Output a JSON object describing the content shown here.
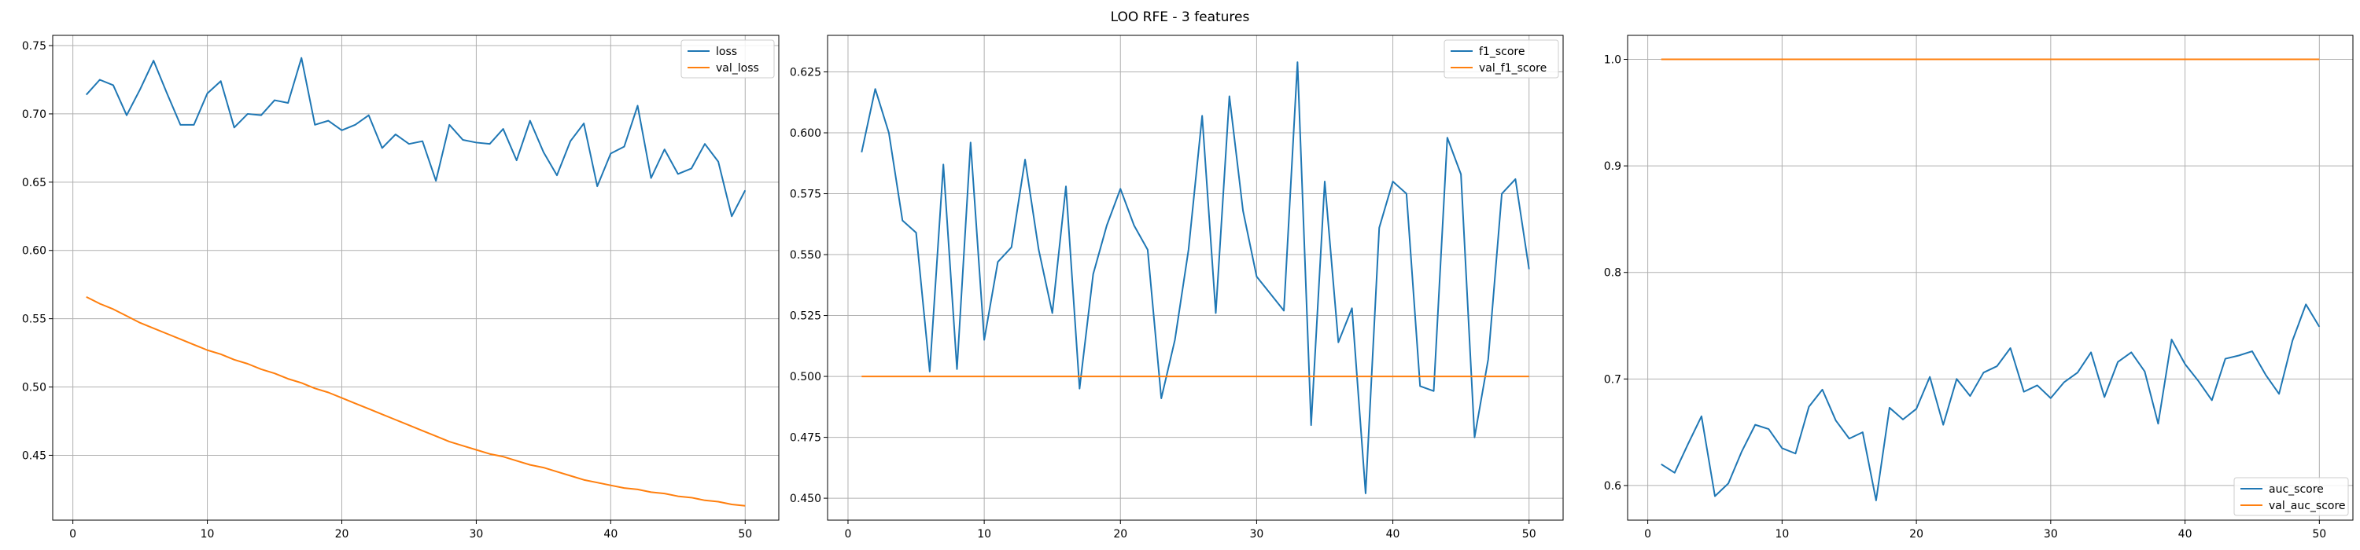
{
  "figure": {
    "title": "LOO RFE - 3 features"
  },
  "colors": {
    "series1": "#1f77b4",
    "series2": "#ff7f0e",
    "grid": "#b0b0b0"
  },
  "chart_data": [
    {
      "type": "line",
      "title": "",
      "xlabel": "",
      "ylabel": "",
      "xlim": [
        -1.5,
        52.5
      ],
      "ylim": [
        0.4025,
        0.7575
      ],
      "xticks": [
        0,
        10,
        20,
        30,
        40,
        50
      ],
      "yticks": [
        0.45,
        0.5,
        0.55,
        0.6,
        0.65,
        0.7,
        0.75
      ],
      "ytick_labels": [
        "0.45",
        "0.50",
        "0.55",
        "0.60",
        "0.65",
        "0.70",
        "0.75"
      ],
      "grid": true,
      "legend_position": "upper right",
      "x": [
        1,
        2,
        3,
        4,
        5,
        6,
        7,
        8,
        9,
        10,
        11,
        12,
        13,
        14,
        15,
        16,
        17,
        18,
        19,
        20,
        21,
        22,
        23,
        24,
        25,
        26,
        27,
        28,
        29,
        30,
        31,
        32,
        33,
        34,
        35,
        36,
        37,
        38,
        39,
        40,
        41,
        42,
        43,
        44,
        45,
        46,
        47,
        48,
        49,
        50
      ],
      "series": [
        {
          "name": "loss",
          "color": "#1f77b4",
          "values": [
            0.714,
            0.725,
            0.721,
            0.699,
            0.718,
            0.739,
            0.715,
            0.692,
            0.692,
            0.715,
            0.724,
            0.69,
            0.7,
            0.699,
            0.71,
            0.708,
            0.741,
            0.692,
            0.695,
            0.688,
            0.692,
            0.699,
            0.675,
            0.685,
            0.678,
            0.68,
            0.651,
            0.692,
            0.681,
            0.679,
            0.678,
            0.689,
            0.666,
            0.695,
            0.672,
            0.655,
            0.68,
            0.693,
            0.647,
            0.671,
            0.676,
            0.706,
            0.653,
            0.674,
            0.656,
            0.66,
            0.678,
            0.665,
            0.625,
            0.644
          ]
        },
        {
          "name": "val_loss",
          "color": "#ff7f0e",
          "values": [
            0.566,
            0.561,
            0.557,
            0.552,
            0.547,
            0.543,
            0.539,
            0.535,
            0.531,
            0.527,
            0.524,
            0.52,
            0.517,
            0.513,
            0.51,
            0.506,
            0.503,
            0.499,
            0.496,
            0.492,
            0.488,
            0.484,
            0.48,
            0.476,
            0.472,
            0.468,
            0.464,
            0.46,
            0.457,
            0.454,
            0.451,
            0.449,
            0.446,
            0.443,
            0.441,
            0.438,
            0.435,
            0.432,
            0.43,
            0.428,
            0.426,
            0.425,
            0.423,
            0.422,
            0.42,
            0.419,
            0.417,
            0.416,
            0.414,
            0.413
          ]
        }
      ]
    },
    {
      "type": "line",
      "title": "",
      "xlabel": "",
      "ylabel": "",
      "xlim": [
        -1.5,
        52.5
      ],
      "ylim": [
        0.441,
        0.64
      ],
      "xticks": [
        0,
        10,
        20,
        30,
        40,
        50
      ],
      "yticks": [
        0.45,
        0.475,
        0.5,
        0.525,
        0.55,
        0.575,
        0.6,
        0.625
      ],
      "ytick_labels": [
        "0.450",
        "0.475",
        "0.500",
        "0.525",
        "0.550",
        "0.575",
        "0.600",
        "0.625"
      ],
      "grid": true,
      "legend_position": "upper right",
      "x": [
        1,
        2,
        3,
        4,
        5,
        6,
        7,
        8,
        9,
        10,
        11,
        12,
        13,
        14,
        15,
        16,
        17,
        18,
        19,
        20,
        21,
        22,
        23,
        24,
        25,
        26,
        27,
        28,
        29,
        30,
        31,
        32,
        33,
        34,
        35,
        36,
        37,
        38,
        39,
        40,
        41,
        42,
        43,
        44,
        45,
        46,
        47,
        48,
        49,
        50
      ],
      "series": [
        {
          "name": "f1_score",
          "color": "#1f77b4",
          "values": [
            0.592,
            0.618,
            0.6,
            0.564,
            0.559,
            0.502,
            0.587,
            0.503,
            0.596,
            0.515,
            0.547,
            0.553,
            0.589,
            0.552,
            0.526,
            0.578,
            0.495,
            0.542,
            0.562,
            0.577,
            0.562,
            0.552,
            0.491,
            0.515,
            0.552,
            0.607,
            0.526,
            0.615,
            0.568,
            0.541,
            0.534,
            0.527,
            0.629,
            0.48,
            0.58,
            0.514,
            0.528,
            0.452,
            0.561,
            0.58,
            0.575,
            0.496,
            0.494,
            0.598,
            0.583,
            0.475,
            0.507,
            0.575,
            0.581,
            0.544
          ]
        },
        {
          "name": "val_f1_score",
          "color": "#ff7f0e",
          "values": [
            0.5,
            0.5,
            0.5,
            0.5,
            0.5,
            0.5,
            0.5,
            0.5,
            0.5,
            0.5,
            0.5,
            0.5,
            0.5,
            0.5,
            0.5,
            0.5,
            0.5,
            0.5,
            0.5,
            0.5,
            0.5,
            0.5,
            0.5,
            0.5,
            0.5,
            0.5,
            0.5,
            0.5,
            0.5,
            0.5,
            0.5,
            0.5,
            0.5,
            0.5,
            0.5,
            0.5,
            0.5,
            0.5,
            0.5,
            0.5,
            0.5,
            0.5,
            0.5,
            0.5,
            0.5,
            0.5,
            0.5,
            0.5,
            0.5,
            0.5
          ]
        }
      ]
    },
    {
      "type": "line",
      "title": "",
      "xlabel": "",
      "ylabel": "",
      "xlim": [
        -1.5,
        52.5
      ],
      "ylim": [
        0.5675,
        1.0225
      ],
      "xticks": [
        0,
        10,
        20,
        30,
        40,
        50
      ],
      "yticks": [
        0.6,
        0.7,
        0.8,
        0.9,
        1.0
      ],
      "ytick_labels": [
        "0.6",
        "0.7",
        "0.8",
        "0.9",
        "1.0"
      ],
      "grid": true,
      "legend_position": "lower right",
      "x": [
        1,
        2,
        3,
        4,
        5,
        6,
        7,
        8,
        9,
        10,
        11,
        12,
        13,
        14,
        15,
        16,
        17,
        18,
        19,
        20,
        21,
        22,
        23,
        24,
        25,
        26,
        27,
        28,
        29,
        30,
        31,
        32,
        33,
        34,
        35,
        36,
        37,
        38,
        39,
        40,
        41,
        42,
        43,
        44,
        45,
        46,
        47,
        48,
        49,
        50
      ],
      "series": [
        {
          "name": "auc_score",
          "color": "#1f77b4",
          "values": [
            0.62,
            0.612,
            0.639,
            0.665,
            0.59,
            0.602,
            0.632,
            0.657,
            0.653,
            0.635,
            0.63,
            0.674,
            0.69,
            0.661,
            0.644,
            0.65,
            0.586,
            0.673,
            0.662,
            0.672,
            0.702,
            0.657,
            0.7,
            0.684,
            0.706,
            0.712,
            0.729,
            0.688,
            0.694,
            0.682,
            0.697,
            0.706,
            0.725,
            0.683,
            0.716,
            0.725,
            0.707,
            0.658,
            0.737,
            0.714,
            0.698,
            0.68,
            0.719,
            0.722,
            0.726,
            0.704,
            0.686,
            0.736,
            0.77,
            0.749
          ]
        },
        {
          "name": "val_auc_score",
          "color": "#ff7f0e",
          "values": [
            1,
            1,
            1,
            1,
            1,
            1,
            1,
            1,
            1,
            1,
            1,
            1,
            1,
            1,
            1,
            1,
            1,
            1,
            1,
            1,
            1,
            1,
            1,
            1,
            1,
            1,
            1,
            1,
            1,
            1,
            1,
            1,
            1,
            1,
            1,
            1,
            1,
            1,
            1,
            1,
            1,
            1,
            1,
            1,
            1,
            1,
            1,
            1,
            1,
            1
          ]
        }
      ]
    }
  ]
}
